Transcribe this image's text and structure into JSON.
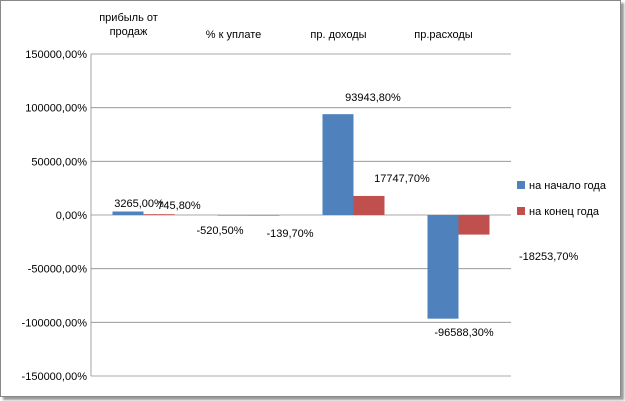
{
  "chart_data": {
    "type": "bar",
    "categories": [
      "прибыль от\nпродаж",
      "% к уплате",
      "пр. доходы",
      "пр.расходы"
    ],
    "series": [
      {
        "name": "на начало года",
        "color": "#4F81BD",
        "values": [
          3265.0,
          -520.5,
          93943.8,
          -96588.3
        ],
        "labels": [
          "3265,00%",
          "-520,50%",
          "93943,80%",
          "-96588,30%"
        ]
      },
      {
        "name": "на конец года",
        "color": "#C0504D",
        "values": [
          745.8,
          -139.7,
          17747.7,
          -18253.7
        ],
        "labels": [
          "745,80%",
          "-139,70%",
          "17747,70%",
          "-18253,70%"
        ]
      }
    ],
    "ylim": [
      -150000,
      150000
    ],
    "yticks": [
      150000,
      100000,
      50000,
      0,
      -50000,
      -100000,
      -150000
    ],
    "ytick_labels": [
      "150000,00%",
      "100000,00%",
      "50000,00%",
      "0,00%",
      "-50000,00%",
      "-100000,00%",
      "-150000,00%"
    ],
    "grid": true,
    "legend_position": "right"
  }
}
